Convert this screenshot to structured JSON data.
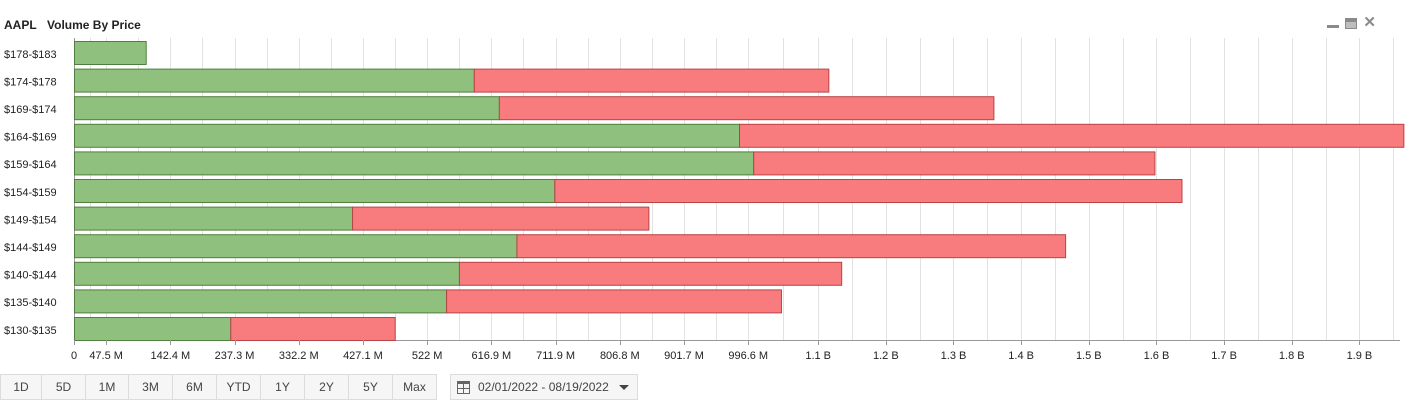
{
  "header": {
    "symbol": "AAPL",
    "title": "Volume By Price",
    "minimize_icon": "minimize-icon",
    "maximize_icon": "maximize-icon",
    "close_icon": "close-icon",
    "close_glyph": "✕"
  },
  "toolbar": {
    "ranges": [
      "1D",
      "5D",
      "1M",
      "3M",
      "6M",
      "YTD",
      "1Y",
      "2Y",
      "5Y",
      "Max"
    ],
    "date_range": "02/01/2022 - 08/19/2022",
    "calendar_icon": "calendar-icon",
    "dropdown_icon": "chevron-down-icon"
  },
  "colors": {
    "up": "#90c07e",
    "down": "#f87c7d",
    "up_border": "#4f7f3e",
    "down_border": "#b94446",
    "grid": "#e2e2e2"
  },
  "chart_data": {
    "type": "bar",
    "orientation": "horizontal",
    "stacked": true,
    "title": "Volume By Price",
    "xlim": [
      0,
      1960000000
    ],
    "grid": true,
    "categories": [
      "$178-$183",
      "$174-$178",
      "$169-$174",
      "$164-$169",
      "$159-$164",
      "$154-$159",
      "$149-$154",
      "$144-$149",
      "$140-$144",
      "$135-$140",
      "$130-$135"
    ],
    "series": [
      {
        "key": "up",
        "values": [
          106000000,
          591000000,
          628000000,
          983000000,
          1004000000,
          710000000,
          411000000,
          654000000,
          569000000,
          550000000,
          231000000
        ]
      },
      {
        "key": "down",
        "values": [
          0,
          524000000,
          731000000,
          982000000,
          593000000,
          927000000,
          438000000,
          811000000,
          565000000,
          495000000,
          243000000
        ]
      }
    ],
    "xticks": [
      {
        "value": 0,
        "label": "0"
      },
      {
        "value": 47500000,
        "label": "47.5 M"
      },
      {
        "value": 142400000,
        "label": "142.4 M"
      },
      {
        "value": 237300000,
        "label": "237.3 M"
      },
      {
        "value": 332200000,
        "label": "332.2 M"
      },
      {
        "value": 427100000,
        "label": "427.1 M"
      },
      {
        "value": 522000000,
        "label": "522 M"
      },
      {
        "value": 616900000,
        "label": "616.9 M"
      },
      {
        "value": 711900000,
        "label": "711.9 M"
      },
      {
        "value": 806800000,
        "label": "806.8 M"
      },
      {
        "value": 901700000,
        "label": "901.7 M"
      },
      {
        "value": 996600000,
        "label": "996.6 M"
      },
      {
        "value": 1100000000,
        "label": "1.1 B"
      },
      {
        "value": 1200000000,
        "label": "1.2 B"
      },
      {
        "value": 1300000000,
        "label": "1.3 B"
      },
      {
        "value": 1400000000,
        "label": "1.4 B"
      },
      {
        "value": 1500000000,
        "label": "1.5 B"
      },
      {
        "value": 1600000000,
        "label": "1.6 B"
      },
      {
        "value": 1700000000,
        "label": "1.7 B"
      },
      {
        "value": 1800000000,
        "label": "1.8 B"
      },
      {
        "value": 1900000000,
        "label": "1.9 B"
      }
    ]
  }
}
